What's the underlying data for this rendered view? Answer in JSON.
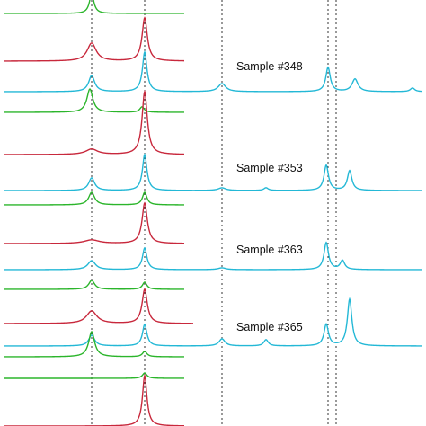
{
  "chart_data": {
    "type": "line",
    "title": "",
    "xlabel": "",
    "ylabel": "",
    "grid": false,
    "legend": "none",
    "annotations": [
      "Sample #348",
      "Sample #353",
      "Sample #363",
      "Sample #365"
    ],
    "reference_lines": [
      {
        "x": 102,
        "style": "dotted"
      },
      {
        "x": 161,
        "style": "dotted"
      },
      {
        "x": 247,
        "style": "dotted"
      },
      {
        "x": 365,
        "style": "dotted"
      },
      {
        "x": 374,
        "style": "dotted"
      }
    ],
    "series": [
      {
        "color": "#2bb52b",
        "x_end": 205,
        "baseline": 15,
        "peaks": [
          {
            "x": 102,
            "h": 22,
            "w": 3
          }
        ]
      },
      {
        "color": "#c8283c",
        "x_end": 205,
        "baseline": 68,
        "peaks": [
          {
            "x": 102,
            "h": 20,
            "w": 6
          },
          {
            "x": 161,
            "h": 48,
            "w": 3.5
          }
        ]
      },
      {
        "color": "#23b8d6",
        "x_end": 470,
        "baseline": 102,
        "peaks": [
          {
            "x": 102,
            "h": 18,
            "w": 4
          },
          {
            "x": 161,
            "h": 44,
            "w": 3
          },
          {
            "x": 247,
            "h": 9,
            "w": 5
          },
          {
            "x": 365,
            "h": 27,
            "w": 3
          },
          {
            "x": 395,
            "h": 14,
            "w": 4
          },
          {
            "x": 459,
            "h": 4,
            "w": 3
          }
        ]
      },
      {
        "color": "#2bb52b",
        "x_end": 205,
        "baseline": 125,
        "peaks": [
          {
            "x": 100,
            "h": 26,
            "w": 4
          },
          {
            "x": 158,
            "h": 6,
            "w": 3
          }
        ]
      },
      {
        "color": "#c8283c",
        "x_end": 205,
        "baseline": 172,
        "peaks": [
          {
            "x": 102,
            "h": 6,
            "w": 8
          },
          {
            "x": 161,
            "h": 70,
            "w": 3.5
          }
        ]
      },
      {
        "color": "#23b8d6",
        "x_end": 470,
        "baseline": 212,
        "peaks": [
          {
            "x": 102,
            "h": 14,
            "w": 4
          },
          {
            "x": 161,
            "h": 40,
            "w": 3
          },
          {
            "x": 247,
            "h": 3,
            "w": 5
          },
          {
            "x": 296,
            "h": 3,
            "w": 3
          },
          {
            "x": 363,
            "h": 28,
            "w": 3
          },
          {
            "x": 389,
            "h": 22,
            "w": 3
          }
        ]
      },
      {
        "color": "#2bb52b",
        "x_end": 205,
        "baseline": 228,
        "peaks": [
          {
            "x": 102,
            "h": 14,
            "w": 4
          },
          {
            "x": 161,
            "h": 14,
            "w": 3
          }
        ]
      },
      {
        "color": "#c8283c",
        "x_end": 205,
        "baseline": 271,
        "peaks": [
          {
            "x": 102,
            "h": 4,
            "w": 10
          },
          {
            "x": 161,
            "h": 45,
            "w": 3.5
          }
        ]
      },
      {
        "color": "#23b8d6",
        "x_end": 470,
        "baseline": 300,
        "peaks": [
          {
            "x": 102,
            "h": 10,
            "w": 5
          },
          {
            "x": 161,
            "h": 24,
            "w": 3
          },
          {
            "x": 247,
            "h": 2,
            "w": 5
          },
          {
            "x": 363,
            "h": 30,
            "w": 3
          },
          {
            "x": 381,
            "h": 10,
            "w": 3
          }
        ]
      },
      {
        "color": "#2bb52b",
        "x_end": 205,
        "baseline": 322,
        "peaks": [
          {
            "x": 102,
            "h": 10,
            "w": 4
          },
          {
            "x": 161,
            "h": 8,
            "w": 3
          }
        ]
      },
      {
        "color": "#c8283c",
        "x_end": 215,
        "baseline": 360,
        "peaks": [
          {
            "x": 102,
            "h": 14,
            "w": 7
          },
          {
            "x": 161,
            "h": 38,
            "w": 3.5
          }
        ]
      },
      {
        "color": "#23b8d6",
        "x_end": 470,
        "baseline": 385,
        "peaks": [
          {
            "x": 102,
            "h": 12,
            "w": 4
          },
          {
            "x": 161,
            "h": 24,
            "w": 3
          },
          {
            "x": 247,
            "h": 8,
            "w": 4
          },
          {
            "x": 296,
            "h": 7,
            "w": 3
          },
          {
            "x": 363,
            "h": 24,
            "w": 3
          },
          {
            "x": 389,
            "h": 52,
            "w": 3
          }
        ]
      },
      {
        "color": "#2bb52b",
        "x_end": 205,
        "baseline": 397,
        "peaks": [
          {
            "x": 102,
            "h": 28,
            "w": 4
          },
          {
            "x": 161,
            "h": 6,
            "w": 3
          }
        ]
      },
      {
        "color": "#c8283c",
        "x_end": 205,
        "baseline": 474,
        "peaks": [
          {
            "x": 161,
            "h": 56,
            "w": 3
          }
        ]
      },
      {
        "color": "#2bb52b",
        "x_end": 205,
        "baseline": 421,
        "peaks": [
          {
            "x": 161,
            "h": 6,
            "w": 3
          }
        ]
      }
    ]
  }
}
